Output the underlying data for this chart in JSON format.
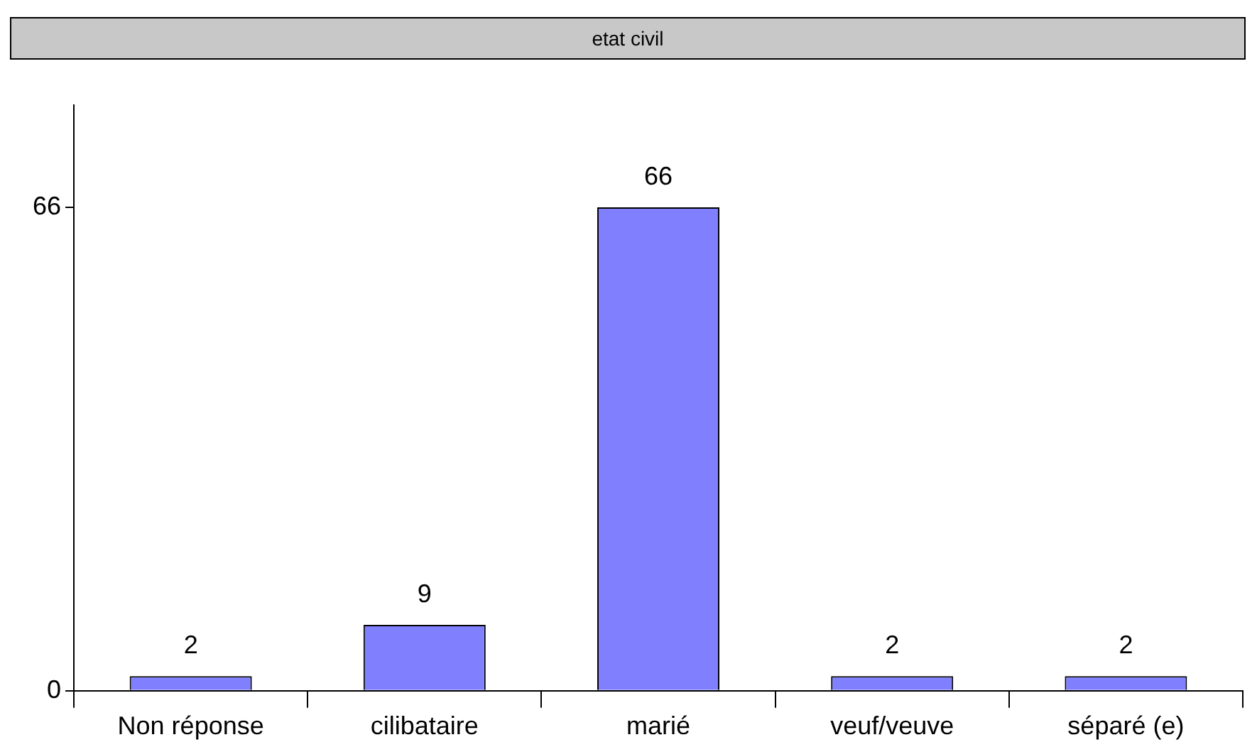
{
  "chart_data": {
    "type": "bar",
    "title": "etat civil",
    "categories": [
      "Non réponse",
      "cilibataire",
      "marié",
      "veuf/veuve",
      "séparé (e)"
    ],
    "values": [
      2,
      9,
      66,
      2,
      2
    ],
    "color": "#8080ff",
    "ylim": [
      0,
      80
    ],
    "yticks": [
      0,
      66
    ],
    "grid": false,
    "legend": false,
    "data_labels": true
  }
}
